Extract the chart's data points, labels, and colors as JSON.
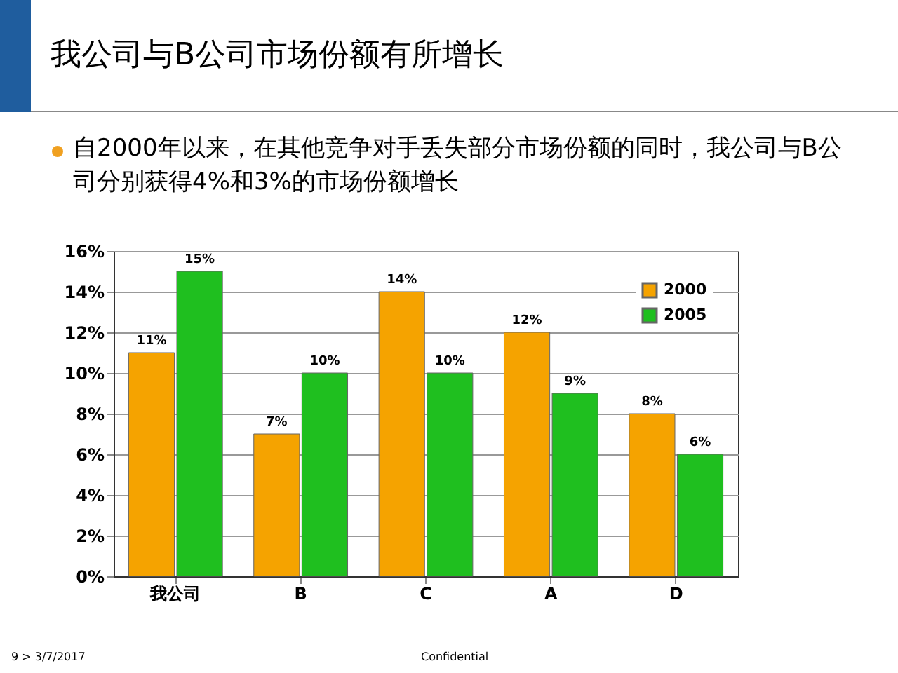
{
  "chart_data": {
    "type": "bar",
    "title": "我公司与B公司市场份额有所增长",
    "subtitle": "自2000年以来，在其他竞争对手丢失部分市场份额的同时，我公司与B公司分别获得4%和3%的市场份额增长",
    "categories": [
      "我公司",
      "B",
      "C",
      "A",
      "D"
    ],
    "series": [
      {
        "name": "2000",
        "color": "#f5a300",
        "values": [
          11,
          7,
          14,
          12,
          8
        ],
        "value_labels": [
          "11%",
          "7%",
          "14%",
          "12%",
          "8%"
        ]
      },
      {
        "name": "2005",
        "color": "#1fbf1f",
        "values": [
          15,
          10,
          10,
          9,
          6
        ],
        "value_labels": [
          "15%",
          "10%",
          "10%",
          "9%",
          "6%"
        ]
      }
    ],
    "ylim": [
      0,
      16
    ],
    "yticks": [
      {
        "value": 0,
        "label": "0%"
      },
      {
        "value": 2,
        "label": "2%"
      },
      {
        "value": 4,
        "label": "4%"
      },
      {
        "value": 6,
        "label": "6%"
      },
      {
        "value": 8,
        "label": "8%"
      },
      {
        "value": 10,
        "label": "10%"
      },
      {
        "value": 12,
        "label": "12%"
      },
      {
        "value": 14,
        "label": "14%"
      },
      {
        "value": 16,
        "label": "16%"
      }
    ],
    "grid": "y",
    "legend": "top right",
    "annotations": [
      "9 > 3/7/2017",
      "Confidential"
    ]
  }
}
